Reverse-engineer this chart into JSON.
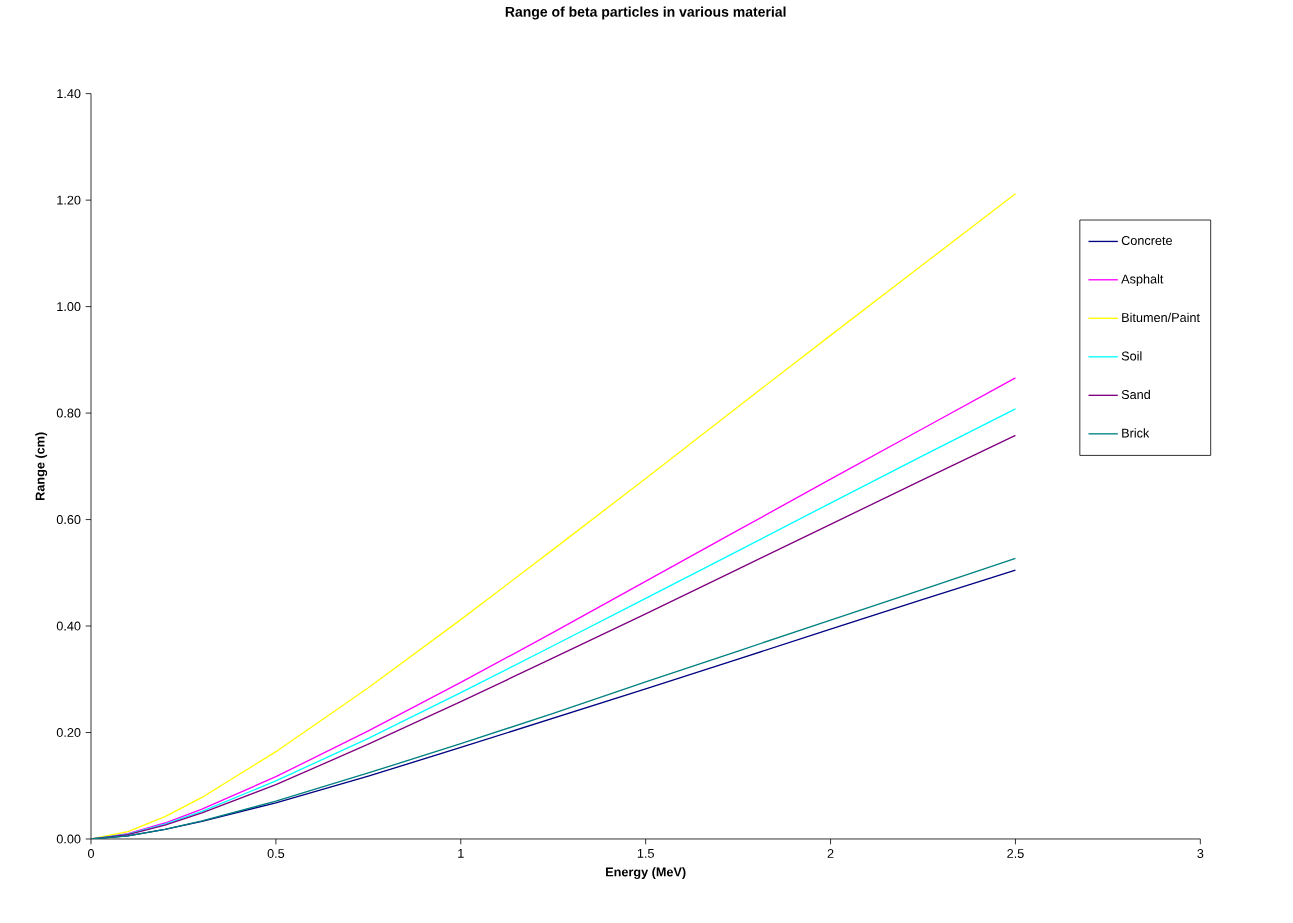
{
  "chart_data": {
    "type": "line",
    "title": "Range of beta particles in various material",
    "xlabel": "Energy (MeV)",
    "ylabel": "Range (cm)",
    "x": [
      0,
      0.1,
      0.2,
      0.3,
      0.5,
      0.75,
      1,
      1.25,
      1.5,
      1.75,
      2,
      2.25,
      2.5
    ],
    "series": [
      {
        "name": "Concrete",
        "color": "#000080",
        "values": [
          0,
          0.006,
          0.018,
          0.033,
          0.068,
          0.118,
          0.172,
          0.227,
          0.282,
          0.338,
          0.394,
          0.45,
          0.505
        ]
      },
      {
        "name": "Asphalt",
        "color": "#ff00ff",
        "values": [
          0,
          0.01,
          0.03,
          0.056,
          0.117,
          0.203,
          0.294,
          0.388,
          0.484,
          0.58,
          0.676,
          0.771,
          0.866
        ]
      },
      {
        "name": "Bitumen/Paint",
        "color": "#ffff00",
        "values": [
          0,
          0.014,
          0.042,
          0.078,
          0.164,
          0.284,
          0.412,
          0.544,
          0.677,
          0.812,
          0.946,
          1.079,
          1.212
        ]
      },
      {
        "name": "Soil",
        "color": "#00ffff",
        "values": [
          0,
          0.009,
          0.028,
          0.052,
          0.109,
          0.189,
          0.275,
          0.363,
          0.452,
          0.541,
          0.631,
          0.72,
          0.808
        ]
      },
      {
        "name": "Sand",
        "color": "#800080",
        "values": [
          0,
          0.008,
          0.026,
          0.049,
          0.102,
          0.178,
          0.258,
          0.34,
          0.423,
          0.507,
          0.591,
          0.675,
          0.758
        ]
      },
      {
        "name": "Brick",
        "color": "#008080",
        "values": [
          0,
          0.006,
          0.018,
          0.034,
          0.071,
          0.124,
          0.179,
          0.236,
          0.295,
          0.353,
          0.411,
          0.469,
          0.527
        ]
      }
    ],
    "xlim": [
      0,
      3
    ],
    "ylim": [
      0,
      1.4
    ],
    "xticks": [
      0,
      0.5,
      1,
      1.5,
      2,
      2.5,
      3
    ],
    "yticks": [
      {
        "value": 0,
        "label": "0.00"
      },
      {
        "value": 0.2,
        "label": "0.20"
      },
      {
        "value": 0.4,
        "label": "0.40"
      },
      {
        "value": 0.6,
        "label": "0.60"
      },
      {
        "value": 0.8,
        "label": "0.80"
      },
      {
        "value": 1.0,
        "label": "1.00"
      },
      {
        "value": 1.2,
        "label": "1.20"
      },
      {
        "value": 1.4,
        "label": "1.40"
      }
    ],
    "grid": false,
    "legend": "right",
    "marker": "none",
    "line_style": "solid"
  }
}
